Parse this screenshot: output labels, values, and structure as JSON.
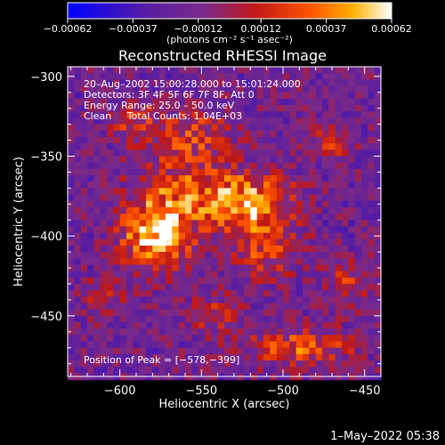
{
  "chart_data": {
    "type": "heatmap",
    "title": "Reconstructed RHESSI Image",
    "xlabel": "Heliocentric X (arcsec)",
    "ylabel": "Heliocentric Y (arcsec)",
    "xlim": [
      -632,
      -440
    ],
    "ylim": [
      -488,
      -294
    ],
    "x_ticks": [
      -600,
      -550,
      -500,
      -450
    ],
    "x_tick_labels": [
      "−600",
      "−550",
      "−500",
      "−450"
    ],
    "y_ticks": [
      -300,
      -350,
      -400,
      -450
    ],
    "y_tick_labels": [
      "−300",
      "−350",
      "−400",
      "−450"
    ],
    "colorbar": {
      "range": [
        -0.00062,
        0.00062
      ],
      "ticks": [
        -0.00062,
        -0.00037,
        -0.00012,
        0.00012,
        0.00037,
        0.00062
      ],
      "tick_labels": [
        "−0.00062",
        "−0.00037",
        "−0.00012",
        "0.00012",
        "0.00037",
        "0.00062"
      ],
      "unit_label": "(photons cm⁻² s⁻¹ asec⁻²)"
    },
    "annotations": {
      "time": "20–Aug–2002 15:00:28.000 to 15:01:24.000",
      "detectors": "Detectors: 3F 4F 5F 6F 7F 8F, Att 0",
      "energy": "Energy Range: 25.0 – 50.0 keV",
      "clean": "Clean     Total Counts: 1.04E+03",
      "peak": "Position of Peak = [−578,−399]"
    },
    "peak_position": [
      -578,
      -399
    ],
    "blobs": [
      {
        "x": -578,
        "y": -399,
        "sx": 14,
        "sy": 14,
        "amp": 1.0
      },
      {
        "x": -520,
        "y": -380,
        "sx": 18,
        "sy": 14,
        "amp": 0.75
      },
      {
        "x": -560,
        "y": -370,
        "sx": 20,
        "sy": 16,
        "amp": 0.55
      },
      {
        "x": -510,
        "y": -410,
        "sx": 14,
        "sy": 12,
        "amp": 0.45
      },
      {
        "x": -555,
        "y": -335,
        "sx": 16,
        "sy": 10,
        "amp": 0.45
      },
      {
        "x": -590,
        "y": -330,
        "sx": 10,
        "sy": 8,
        "amp": 0.4
      },
      {
        "x": -470,
        "y": -340,
        "sx": 8,
        "sy": 8,
        "amp": 0.4
      },
      {
        "x": -490,
        "y": -470,
        "sx": 22,
        "sy": 8,
        "amp": 0.55
      },
      {
        "x": -540,
        "y": -450,
        "sx": 12,
        "sy": 10,
        "amp": 0.3
      },
      {
        "x": -610,
        "y": -440,
        "sx": 10,
        "sy": 10,
        "amp": 0.25
      },
      {
        "x": -460,
        "y": -430,
        "sx": 10,
        "sy": 10,
        "amp": 0.35
      }
    ]
  },
  "footer": {
    "date": "1–May–2022 05:38"
  }
}
